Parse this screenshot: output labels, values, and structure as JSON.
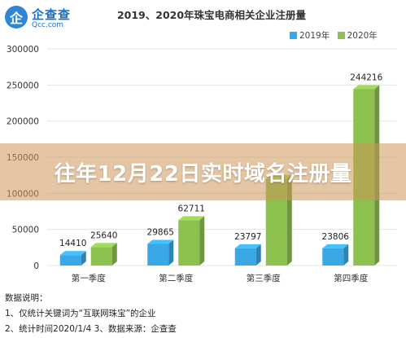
{
  "brand": {
    "mark": "企",
    "name": "企查查",
    "sub": "Qcc.com"
  },
  "overlay_text": "往年12月22日实时域名注册量",
  "notes": {
    "heading": "数据说明：",
    "line1": "1、仅统计关键词为“互联网珠宝”的企业",
    "line2": "2、统计时间2020/1/4   3、数据来源：企查查"
  },
  "colors": {
    "series_2019": "#3aa8e6",
    "series_2020": "#8cc04f",
    "grid": "#e4e4e4",
    "axis_text": "#333333"
  },
  "chart_data": {
    "type": "bar",
    "title": "2019、2020年珠宝电商相关企业注册量",
    "categories": [
      "第一季度",
      "第二季度",
      "第三季度",
      "第四季度"
    ],
    "series": [
      {
        "name": "2019年",
        "values": [
          14410,
          29865,
          23797,
          23806
        ],
        "labels": [
          "14410",
          "29865",
          "23797",
          "23806"
        ]
      },
      {
        "name": "2020年",
        "values": [
          25640,
          62711,
          120000,
          244216
        ],
        "labels": [
          "25640",
          "62711",
          "",
          "244216"
        ]
      }
    ],
    "ylim": [
      0,
      300000
    ],
    "yticks": [
      0,
      50000,
      100000,
      150000,
      200000,
      250000,
      300000
    ],
    "ytick_labels": [
      "0",
      "50000",
      "100000",
      "150000",
      "200000",
      "250000",
      "300000"
    ],
    "grid": true,
    "legend_position": "top-right",
    "style": "3d-bars"
  }
}
